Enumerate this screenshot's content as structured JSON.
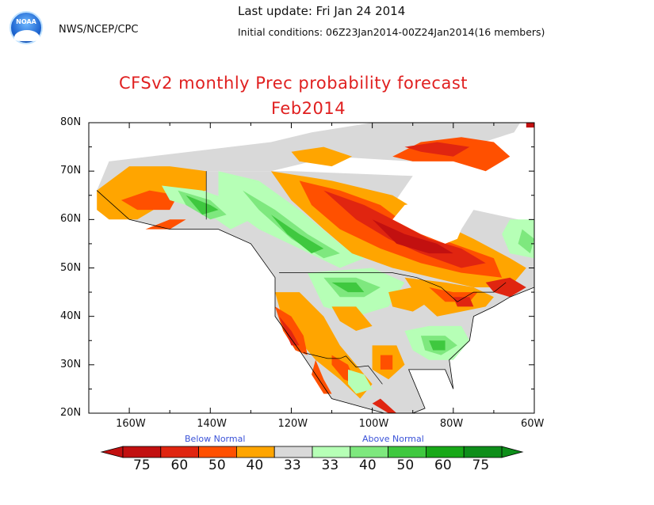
{
  "header": {
    "agency": "NWS/NCEP/CPC",
    "logo_text": "NOAA",
    "last_update": "Last update: Fri Jan 24 2014",
    "initial_conditions": "Initial conditions: 06Z23Jan2014-00Z24Jan2014(16 members)"
  },
  "title": {
    "line1": "CFSv2 monthly Prec probability forecast",
    "line2": "Feb2014"
  },
  "map": {
    "lat_labels": [
      "80N",
      "70N",
      "60N",
      "50N",
      "40N",
      "30N",
      "20N"
    ],
    "lon_labels": [
      "160W",
      "140W",
      "120W",
      "100W",
      "80W",
      "60W"
    ],
    "extent": {
      "lon_min": -170,
      "lon_max": -60,
      "lat_min": 20,
      "lat_max": 80
    }
  },
  "legend": {
    "below_label": "Below Normal",
    "above_label": "Above Normal",
    "numbers": [
      "75",
      "60",
      "50",
      "40",
      "33",
      "33",
      "40",
      "50",
      "60",
      "75"
    ],
    "colors": [
      "#c21010",
      "#e02510",
      "#ff5000",
      "#ffa500",
      "#d9d9d9",
      "#b6ffb6",
      "#7ee87e",
      "#3fc83f",
      "#18a818",
      "#0e8e1a"
    ]
  },
  "colors": {
    "below_strong": "#c21010",
    "below_60": "#e02510",
    "below_50": "#ff5000",
    "below_40": "#ffa500",
    "normal": "#d9d9d9",
    "above_40": "#b6ffb6",
    "above_50": "#7ee87e",
    "above_60": "#3fc83f",
    "title_red": "#e02020",
    "legend_blue": "#3a52d8"
  }
}
